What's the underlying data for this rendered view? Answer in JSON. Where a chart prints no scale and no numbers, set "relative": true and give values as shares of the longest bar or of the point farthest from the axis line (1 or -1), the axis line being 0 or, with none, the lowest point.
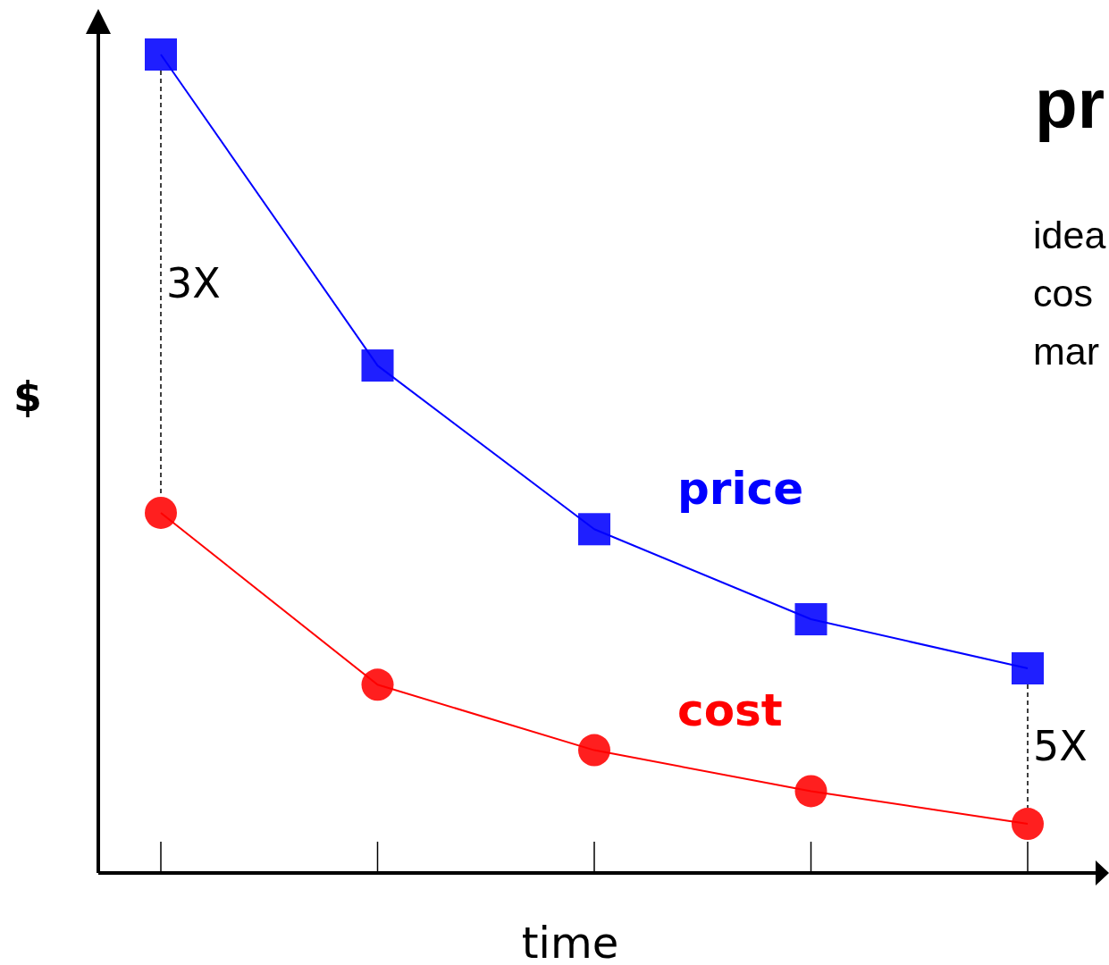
{
  "chart_data": {
    "type": "line",
    "relative": true,
    "title": "pr",
    "xlabel": "time",
    "ylabel": "$",
    "categories": [
      null,
      null,
      null,
      null,
      null
    ],
    "series": [
      {
        "name": "price",
        "color": "#0000ff",
        "marker": "square",
        "values": [
          1,
          0.62,
          0.42,
          0.31,
          0.25
        ]
      },
      {
        "name": "cost",
        "color": "#ff0000",
        "marker": "circle",
        "values": [
          0.44,
          0.23,
          0.15,
          0.1,
          0.06
        ]
      }
    ],
    "annotations": [
      "3X",
      "5X",
      "idea",
      "cos",
      "mar"
    ],
    "legend": false,
    "grid": false
  }
}
